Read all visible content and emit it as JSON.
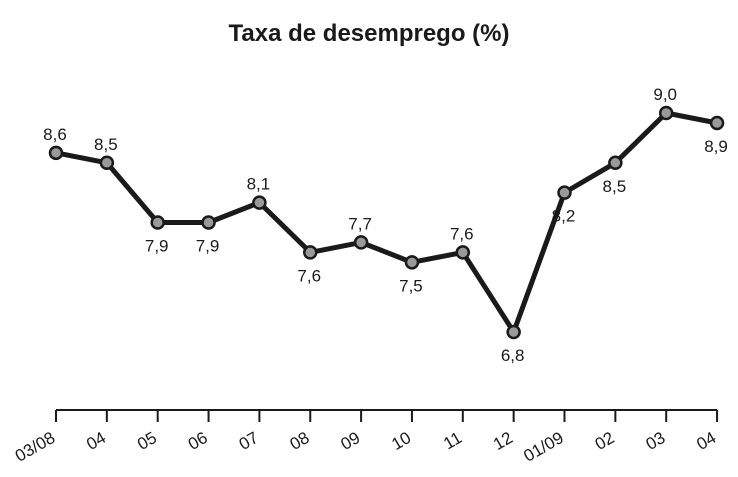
{
  "chart_data": {
    "type": "line",
    "title": "Taxa de desemprego (%)",
    "xlabel": "",
    "ylabel": "",
    "categories": [
      "03/08",
      "04",
      "05",
      "06",
      "07",
      "08",
      "09",
      "10",
      "11",
      "12",
      "01/09",
      "02",
      "03",
      "04"
    ],
    "values": [
      8.6,
      8.5,
      7.9,
      7.9,
      8.1,
      7.6,
      7.7,
      7.5,
      7.6,
      6.8,
      8.2,
      8.5,
      9.0,
      8.9
    ],
    "value_labels": [
      "8,6",
      "8,5",
      "7,9",
      "7,9",
      "8,1",
      "7,6",
      "7,7",
      "7,5",
      "7,6",
      "6,8",
      "8,2",
      "8,5",
      "9,0",
      "8,9"
    ],
    "label_positions": [
      "above",
      "above",
      "below",
      "below",
      "above",
      "below",
      "above",
      "below",
      "above",
      "below",
      "below",
      "below",
      "above",
      "below"
    ],
    "ylim": [
      6.8,
      9.0
    ],
    "grid": false,
    "legend": "none",
    "colors": {
      "line": "#1a1a1a",
      "marker_fill": "#9a9a9a",
      "marker_stroke": "#1a1a1a",
      "text": "#1a1a1a"
    }
  }
}
